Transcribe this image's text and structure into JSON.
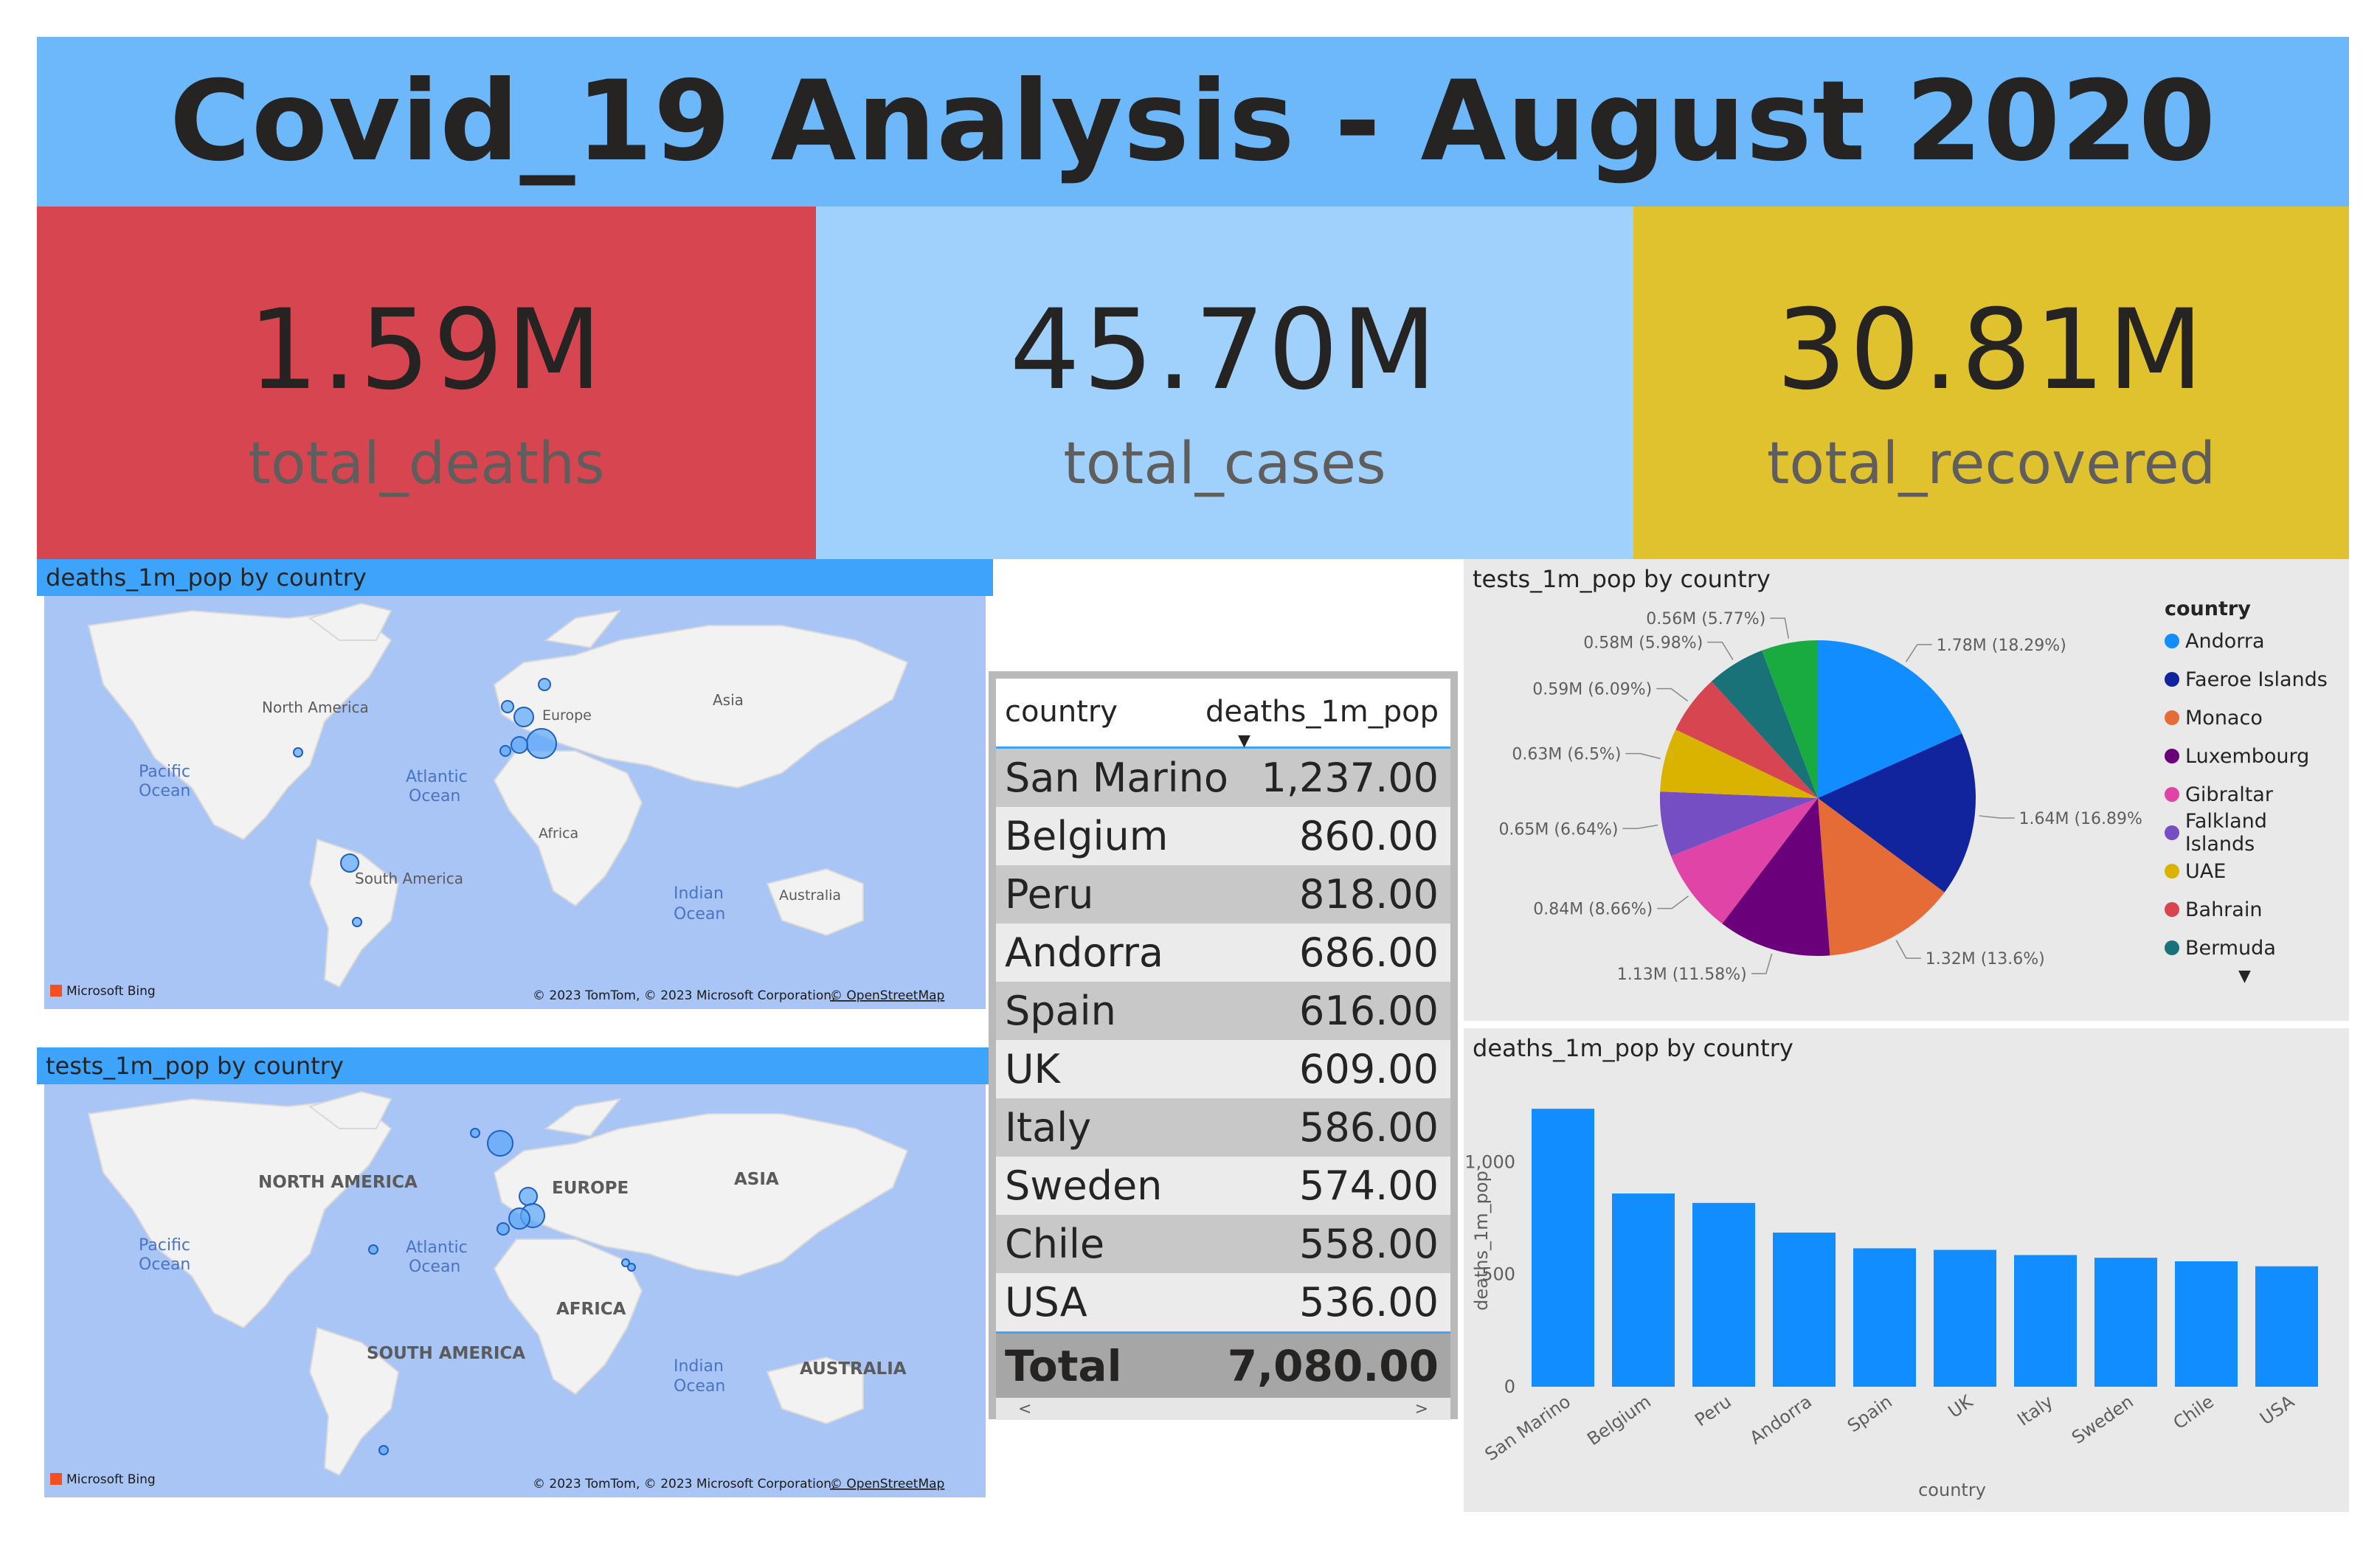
{
  "title": "Covid_19 Analysis - August 2020",
  "kpis": {
    "deaths": {
      "value": "1.59M",
      "label": "total_deaths"
    },
    "cases": {
      "value": "45.70M",
      "label": "total_cases"
    },
    "recovered": {
      "value": "30.81M",
      "label": "total_recovered"
    }
  },
  "colors": {
    "title_bg": "#6cb8fb",
    "deaths_bg": "#d64550",
    "cases_bg": "#a0d1fc",
    "recovered_bg": "#e0c22f",
    "header_bg": "#3ea3fb",
    "bar": "#118dff"
  },
  "map_deaths": {
    "title": "deaths_1m_pop by country",
    "labels": {
      "north_america": "North America",
      "south_america": "South America",
      "europe": "Europe",
      "asia": "Asia",
      "africa": "Africa",
      "australia": "Australia",
      "pacific": "Pacific",
      "pacific2": "Ocean",
      "atlantic": "Atlantic",
      "atlantic2": "Ocean",
      "indian": "Indian",
      "indian2": "Ocean"
    },
    "logo": "Microsoft Bing",
    "attribution": "© 2023 TomTom, © 2023 Microsoft Corporation,",
    "attribution_link": "© OpenStreetMap"
  },
  "map_tests": {
    "title": "tests_1m_pop by country",
    "labels": {
      "north_america": "NORTH AMERICA",
      "south_america": "SOUTH AMERICA",
      "europe": "EUROPE",
      "asia": "ASIA",
      "africa": "AFRICA",
      "australia": "AUSTRALIA",
      "pacific": "Pacific",
      "pacific2": "Ocean",
      "atlantic": "Atlantic",
      "atlantic2": "Ocean",
      "indian": "Indian",
      "indian2": "Ocean"
    },
    "logo": "Microsoft Bing",
    "attribution": "© 2023 TomTom, © 2023 Microsoft Corporation,",
    "attribution_link": "© OpenStreetMap"
  },
  "table": {
    "columns": [
      "country",
      "deaths_1m_pop"
    ],
    "rows": [
      {
        "country": "San Marino",
        "value": "1,237.00"
      },
      {
        "country": "Belgium",
        "value": "860.00"
      },
      {
        "country": "Peru",
        "value": "818.00"
      },
      {
        "country": "Andorra",
        "value": "686.00"
      },
      {
        "country": "Spain",
        "value": "616.00"
      },
      {
        "country": "UK",
        "value": "609.00"
      },
      {
        "country": "Italy",
        "value": "586.00"
      },
      {
        "country": "Sweden",
        "value": "574.00"
      },
      {
        "country": "Chile",
        "value": "558.00"
      },
      {
        "country": "USA",
        "value": "536.00"
      }
    ],
    "total_label": "Total",
    "total_value": "7,080.00"
  },
  "pie": {
    "title": "tests_1m_pop by country",
    "legend_title": "country",
    "legend": [
      {
        "name": "Andorra",
        "color": "#118dff"
      },
      {
        "name": "Faeroe Islands",
        "color": "#12239e"
      },
      {
        "name": "Monaco",
        "color": "#e66c37"
      },
      {
        "name": "Luxembourg",
        "color": "#6b007b"
      },
      {
        "name": "Gibraltar",
        "color": "#e044a7"
      },
      {
        "name": "Falkland Islands",
        "color": "#744ec2"
      },
      {
        "name": "UAE",
        "color": "#d9b300"
      },
      {
        "name": "Bahrain",
        "color": "#d64550"
      },
      {
        "name": "Bermuda",
        "color": "#197278"
      }
    ]
  },
  "bar": {
    "title": "deaths_1m_pop by country",
    "xlabel": "country",
    "ylabel": "deaths_1m_pop",
    "ticks": [
      "0",
      "500",
      "1,000"
    ]
  },
  "chart_data": [
    {
      "type": "pie",
      "title": "tests_1m_pop by country",
      "slices": [
        {
          "label": "1.78M (18.29%)",
          "value": 1.78,
          "percent": 18.29,
          "color": "#118dff"
        },
        {
          "label": "1.64M (16.89%)",
          "value": 1.64,
          "percent": 16.89,
          "color": "#12239e"
        },
        {
          "label": "1.32M (13.6%)",
          "value": 1.32,
          "percent": 13.6,
          "color": "#e66c37"
        },
        {
          "label": "1.13M (11.58%)",
          "value": 1.13,
          "percent": 11.58,
          "color": "#6b007b"
        },
        {
          "label": "0.84M (8.66%)",
          "value": 0.84,
          "percent": 8.66,
          "color": "#e044a7"
        },
        {
          "label": "0.65M (6.64%)",
          "value": 0.65,
          "percent": 6.64,
          "color": "#744ec2"
        },
        {
          "label": "0.63M (6.5%)",
          "value": 0.63,
          "percent": 6.5,
          "color": "#d9b300"
        },
        {
          "label": "0.59M (6.09%)",
          "value": 0.59,
          "percent": 6.09,
          "color": "#d64550"
        },
        {
          "label": "0.58M (5.98%)",
          "value": 0.58,
          "percent": 5.98,
          "color": "#197278"
        },
        {
          "label": "0.56M (5.77%)",
          "value": 0.56,
          "percent": 5.77,
          "color": "#1aab40"
        }
      ]
    },
    {
      "type": "bar",
      "title": "deaths_1m_pop by country",
      "categories": [
        "San Marino",
        "Belgium",
        "Peru",
        "Andorra",
        "Spain",
        "UK",
        "Italy",
        "Sweden",
        "Chile",
        "USA"
      ],
      "values": [
        1237,
        860,
        818,
        686,
        616,
        609,
        586,
        574,
        558,
        536
      ],
      "xlabel": "country",
      "ylabel": "deaths_1m_pop",
      "ylim": [
        0,
        1300
      ],
      "yticks": [
        0,
        500,
        1000
      ]
    }
  ]
}
